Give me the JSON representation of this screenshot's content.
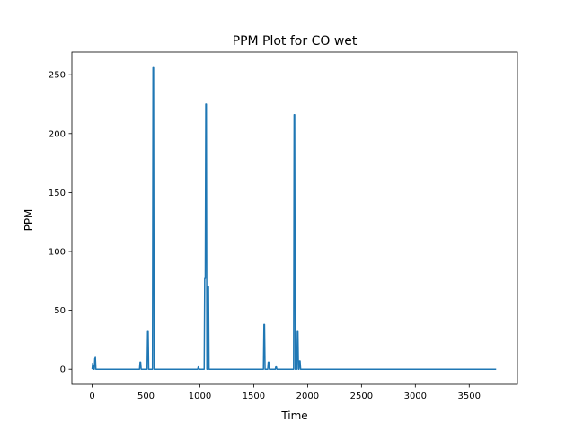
{
  "chart_data": {
    "type": "line",
    "title": "PPM Plot for CO wet",
    "xlabel": "Time",
    "ylabel": "PPM",
    "xlim": [
      -188,
      3948
    ],
    "ylim": [
      -12.8,
      269.2
    ],
    "xticks": [
      0,
      500,
      1000,
      1500,
      2000,
      2500,
      3000,
      3500
    ],
    "yticks": [
      0,
      50,
      100,
      150,
      200,
      250
    ],
    "grid": false,
    "series": [
      {
        "color": "#1f77b4",
        "x": [
          0,
          5,
          15,
          20,
          25,
          30,
          35,
          40,
          45,
          50,
          100,
          200,
          300,
          400,
          440,
          445,
          450,
          455,
          460,
          500,
          510,
          515,
          520,
          525,
          530,
          560,
          565,
          570,
          575,
          580,
          600,
          700,
          800,
          900,
          980,
          985,
          990,
          995,
          1000,
          1040,
          1045,
          1050,
          1055,
          1060,
          1065,
          1070,
          1075,
          1080,
          1085,
          1090,
          1100,
          1200,
          1300,
          1400,
          1500,
          1590,
          1595,
          1600,
          1605,
          1610,
          1630,
          1635,
          1640,
          1645,
          1700,
          1705,
          1710,
          1715,
          1750,
          1800,
          1870,
          1875,
          1880,
          1885,
          1890,
          1900,
          1905,
          1910,
          1915,
          1920,
          1925,
          1930,
          1935,
          1940,
          2000,
          2200,
          2400,
          2600,
          2800,
          3000,
          3200,
          3400,
          3600,
          3750
        ],
        "y": [
          0,
          5,
          0,
          0,
          9,
          10,
          0,
          0,
          0,
          0,
          0,
          0,
          0,
          0,
          0,
          6,
          6,
          0,
          0,
          0,
          0,
          32,
          32,
          0,
          0,
          0,
          256,
          256,
          0,
          0,
          0,
          0,
          0,
          0,
          0,
          2,
          1,
          0,
          0,
          0,
          77,
          77,
          225,
          225,
          0,
          0,
          70,
          70,
          0,
          0,
          0,
          0,
          0,
          0,
          0,
          0,
          38,
          38,
          0,
          0,
          0,
          6,
          6,
          0,
          0,
          2,
          2,
          0,
          0,
          0,
          0,
          216,
          216,
          0,
          0,
          0,
          32,
          32,
          0,
          0,
          7,
          7,
          0,
          0,
          0,
          0,
          0,
          0,
          0,
          0,
          0,
          0,
          0,
          0
        ]
      }
    ]
  }
}
